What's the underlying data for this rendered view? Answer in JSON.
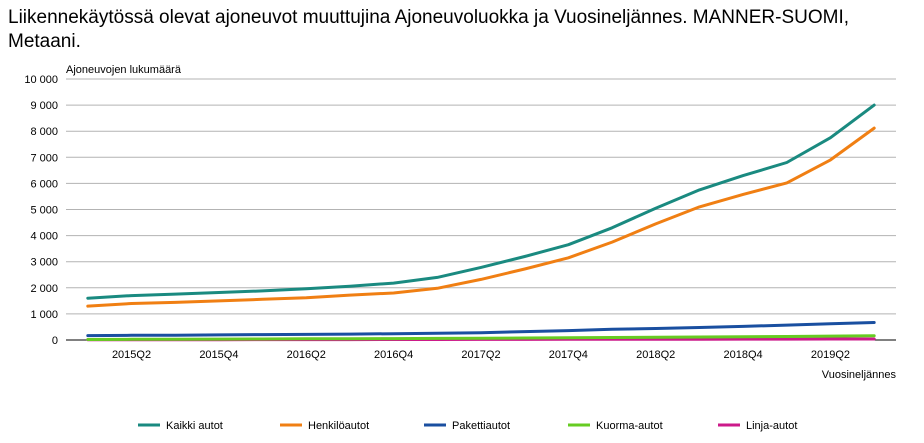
{
  "chart_data": {
    "type": "line",
    "title": "Liikennekäytössä olevat ajoneuvot muuttujina Ajoneuvoluokka ja Vuosineljännes. MANNER-SUOMI, Metaani.",
    "ylabel": "Ajoneuvojen lukumäärä",
    "xlabel": "Vuosineljännes",
    "ylim": [
      0,
      10000
    ],
    "yticks": [
      0,
      1000,
      2000,
      3000,
      4000,
      5000,
      6000,
      7000,
      8000,
      9000,
      10000
    ],
    "ytick_labels": [
      "0",
      "1 000",
      "2 000",
      "3 000",
      "4 000",
      "5 000",
      "6 000",
      "7 000",
      "8 000",
      "9 000",
      "10 000"
    ],
    "grid": true,
    "legend": "bottom",
    "categories": [
      "2015Q1",
      "2015Q2",
      "2015Q3",
      "2015Q4",
      "2016Q1",
      "2016Q2",
      "2016Q3",
      "2016Q4",
      "2017Q1",
      "2017Q2",
      "2017Q3",
      "2017Q4",
      "2018Q1",
      "2018Q2",
      "2018Q3",
      "2018Q4",
      "2019Q1",
      "2019Q2",
      "2019Q3"
    ],
    "xtick_labels": [
      "2015Q2",
      "2015Q4",
      "2016Q2",
      "2016Q4",
      "2017Q2",
      "2017Q4",
      "2018Q2",
      "2018Q4",
      "2019Q2"
    ],
    "series": [
      {
        "name": "Kaikki autot",
        "color": "#1a8a80",
        "values": [
          1600,
          1700,
          1760,
          1820,
          1880,
          1960,
          2060,
          2180,
          2400,
          2780,
          3200,
          3650,
          4300,
          5050,
          5750,
          6300,
          6800,
          7750,
          9000
        ]
      },
      {
        "name": "Henkilöautot",
        "color": "#f07f13",
        "values": [
          1300,
          1400,
          1440,
          1500,
          1560,
          1620,
          1720,
          1800,
          1980,
          2320,
          2720,
          3150,
          3750,
          4450,
          5100,
          5580,
          6020,
          6900,
          8120
        ]
      },
      {
        "name": "Pakettiautot",
        "color": "#1a4fa0",
        "values": [
          170,
          180,
          185,
          195,
          205,
          215,
          225,
          240,
          260,
          280,
          320,
          360,
          410,
          440,
          480,
          520,
          570,
          620,
          670
        ]
      },
      {
        "name": "Kuorma-autot",
        "color": "#66cc22",
        "values": [
          20,
          25,
          30,
          35,
          40,
          45,
          50,
          55,
          60,
          65,
          75,
          85,
          95,
          105,
          115,
          125,
          135,
          150,
          165
        ]
      },
      {
        "name": "Linja-autot",
        "color": "#cc1a8a",
        "values": [
          10,
          10,
          12,
          12,
          14,
          15,
          16,
          18,
          20,
          22,
          24,
          26,
          28,
          30,
          32,
          34,
          36,
          38,
          40
        ]
      }
    ]
  }
}
